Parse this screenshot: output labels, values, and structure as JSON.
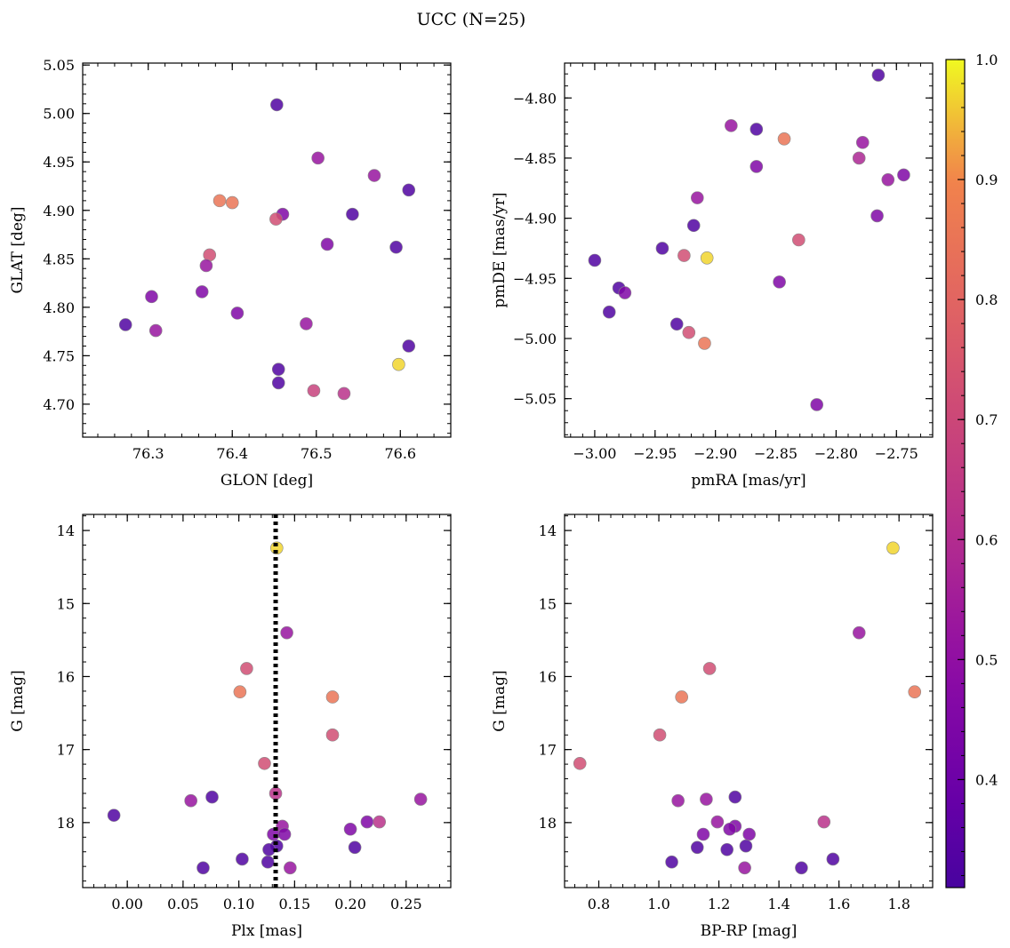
{
  "figure": {
    "title": "UCC (N=25)"
  },
  "colorbar": {
    "min": 0.31,
    "max": 1.0,
    "ticks": [
      0.4,
      0.5,
      0.6,
      0.7,
      0.8,
      0.9,
      1.0
    ],
    "tick_labels": [
      "0.4",
      "0.5",
      "0.6",
      "0.7",
      "0.8",
      "0.9",
      "1.0"
    ],
    "colormap": "plasma"
  },
  "marker_color_values": [
    0.33,
    0.45,
    0.52,
    0.58,
    0.62,
    0.68,
    0.72,
    0.78,
    0.85,
    0.97
  ],
  "chart_data": [
    {
      "type": "scatter",
      "title": "",
      "xlabel": "GLON [deg]",
      "ylabel": "GLAT [deg]",
      "xlim": [
        76.222,
        76.66
      ],
      "ylim": [
        4.666,
        5.052
      ],
      "invert_y": false,
      "xticks": [
        76.3,
        76.4,
        76.5,
        76.6
      ],
      "xtick_labels": [
        "76.3",
        "76.4",
        "76.5",
        "76.6"
      ],
      "yticks": [
        4.7,
        4.75,
        4.8,
        4.85,
        4.9,
        4.95,
        5.0,
        5.05
      ],
      "ytick_labels": [
        "4.70",
        "4.75",
        "4.80",
        "4.85",
        "4.90",
        "4.95",
        "5.00",
        "5.05"
      ],
      "points": [
        {
          "x": 76.453,
          "y": 5.009,
          "c": 0.33
        },
        {
          "x": 76.502,
          "y": 4.954,
          "c": 0.52
        },
        {
          "x": 76.569,
          "y": 4.936,
          "c": 0.52
        },
        {
          "x": 76.61,
          "y": 4.921,
          "c": 0.33
        },
        {
          "x": 76.385,
          "y": 4.91,
          "c": 0.85
        },
        {
          "x": 76.4,
          "y": 4.908,
          "c": 0.85
        },
        {
          "x": 76.46,
          "y": 4.896,
          "c": 0.45
        },
        {
          "x": 76.543,
          "y": 4.896,
          "c": 0.33
        },
        {
          "x": 76.452,
          "y": 4.891,
          "c": 0.72
        },
        {
          "x": 76.513,
          "y": 4.865,
          "c": 0.45
        },
        {
          "x": 76.595,
          "y": 4.862,
          "c": 0.33
        },
        {
          "x": 76.373,
          "y": 4.854,
          "c": 0.72
        },
        {
          "x": 76.369,
          "y": 4.843,
          "c": 0.52
        },
        {
          "x": 76.364,
          "y": 4.816,
          "c": 0.45
        },
        {
          "x": 76.304,
          "y": 4.811,
          "c": 0.45
        },
        {
          "x": 76.406,
          "y": 4.794,
          "c": 0.45
        },
        {
          "x": 76.488,
          "y": 4.783,
          "c": 0.52
        },
        {
          "x": 76.273,
          "y": 4.782,
          "c": 0.33
        },
        {
          "x": 76.309,
          "y": 4.776,
          "c": 0.52
        },
        {
          "x": 76.61,
          "y": 4.76,
          "c": 0.33
        },
        {
          "x": 76.598,
          "y": 4.741,
          "c": 0.97
        },
        {
          "x": 76.455,
          "y": 4.736,
          "c": 0.33
        },
        {
          "x": 76.455,
          "y": 4.722,
          "c": 0.33
        },
        {
          "x": 76.497,
          "y": 4.714,
          "c": 0.68
        },
        {
          "x": 76.533,
          "y": 4.711,
          "c": 0.62
        }
      ]
    },
    {
      "type": "scatter",
      "title": "",
      "xlabel": "pmRA [mas/yr]",
      "ylabel": "pmDE [mas/yr]",
      "xlim": [
        -3.025,
        -2.72
      ],
      "ylim": [
        -5.082,
        -4.771
      ],
      "invert_y": false,
      "xticks": [
        -3.0,
        -2.95,
        -2.9,
        -2.85,
        -2.8,
        -2.75
      ],
      "xtick_labels": [
        "−3.00",
        "−2.95",
        "−2.90",
        "−2.85",
        "−2.80",
        "−2.75"
      ],
      "yticks": [
        -5.05,
        -5.0,
        -4.95,
        -4.9,
        -4.85,
        -4.8
      ],
      "ytick_labels": [
        "−5.05",
        "−5.00",
        "−4.95",
        "−4.90",
        "−4.85",
        "−4.80"
      ],
      "points": [
        {
          "x": -2.765,
          "y": -4.781,
          "c": 0.33
        },
        {
          "x": -2.887,
          "y": -4.823,
          "c": 0.52
        },
        {
          "x": -2.866,
          "y": -4.826,
          "c": 0.33
        },
        {
          "x": -2.843,
          "y": -4.834,
          "c": 0.85
        },
        {
          "x": -2.778,
          "y": -4.837,
          "c": 0.52
        },
        {
          "x": -2.781,
          "y": -4.85,
          "c": 0.58
        },
        {
          "x": -2.866,
          "y": -4.857,
          "c": 0.45
        },
        {
          "x": -2.744,
          "y": -4.864,
          "c": 0.45
        },
        {
          "x": -2.757,
          "y": -4.868,
          "c": 0.52
        },
        {
          "x": -2.915,
          "y": -4.883,
          "c": 0.52
        },
        {
          "x": -2.766,
          "y": -4.898,
          "c": 0.45
        },
        {
          "x": -2.918,
          "y": -4.906,
          "c": 0.33
        },
        {
          "x": -2.831,
          "y": -4.918,
          "c": 0.72
        },
        {
          "x": -2.944,
          "y": -4.925,
          "c": 0.33
        },
        {
          "x": -2.926,
          "y": -4.931,
          "c": 0.72
        },
        {
          "x": -2.907,
          "y": -4.933,
          "c": 0.97
        },
        {
          "x": -3.0,
          "y": -4.935,
          "c": 0.33
        },
        {
          "x": -2.847,
          "y": -4.953,
          "c": 0.45
        },
        {
          "x": -2.98,
          "y": -4.958,
          "c": 0.33
        },
        {
          "x": -2.975,
          "y": -4.962,
          "c": 0.45
        },
        {
          "x": -2.988,
          "y": -4.978,
          "c": 0.33
        },
        {
          "x": -2.932,
          "y": -4.988,
          "c": 0.33
        },
        {
          "x": -2.922,
          "y": -4.995,
          "c": 0.72
        },
        {
          "x": -2.909,
          "y": -5.004,
          "c": 0.85
        },
        {
          "x": -2.816,
          "y": -5.055,
          "c": 0.45
        }
      ]
    },
    {
      "type": "scatter",
      "title": "",
      "xlabel": "Plx [mas]",
      "ylabel": "G [mag]",
      "xlim": [
        -0.04,
        0.29
      ],
      "ylim": [
        18.89,
        13.78
      ],
      "invert_y": true,
      "vline": {
        "x": 0.133,
        "style": "dotted"
      },
      "xticks": [
        0.0,
        0.05,
        0.1,
        0.15,
        0.2,
        0.25
      ],
      "xtick_labels": [
        "0.00",
        "0.05",
        "0.10",
        "0.15",
        "0.20",
        "0.25"
      ],
      "yticks": [
        14,
        15,
        16,
        17,
        18
      ],
      "ytick_labels": [
        "14",
        "15",
        "16",
        "17",
        "18"
      ],
      "points": [
        {
          "x": 0.134,
          "y": 14.24,
          "c": 0.97
        },
        {
          "x": 0.143,
          "y": 15.4,
          "c": 0.52
        },
        {
          "x": 0.107,
          "y": 15.89,
          "c": 0.72
        },
        {
          "x": 0.101,
          "y": 16.21,
          "c": 0.85
        },
        {
          "x": 0.184,
          "y": 16.28,
          "c": 0.85
        },
        {
          "x": 0.184,
          "y": 16.8,
          "c": 0.72
        },
        {
          "x": 0.123,
          "y": 17.19,
          "c": 0.72
        },
        {
          "x": 0.133,
          "y": 17.6,
          "c": 0.62
        },
        {
          "x": 0.076,
          "y": 17.65,
          "c": 0.33
        },
        {
          "x": 0.263,
          "y": 17.68,
          "c": 0.52
        },
        {
          "x": 0.057,
          "y": 17.7,
          "c": 0.52
        },
        {
          "x": -0.012,
          "y": 17.9,
          "c": 0.33
        },
        {
          "x": 0.215,
          "y": 17.99,
          "c": 0.45
        },
        {
          "x": 0.226,
          "y": 17.99,
          "c": 0.62
        },
        {
          "x": 0.139,
          "y": 18.05,
          "c": 0.52
        },
        {
          "x": 0.2,
          "y": 18.09,
          "c": 0.45
        },
        {
          "x": 0.131,
          "y": 18.16,
          "c": 0.45
        },
        {
          "x": 0.141,
          "y": 18.16,
          "c": 0.45
        },
        {
          "x": 0.134,
          "y": 18.32,
          "c": 0.33
        },
        {
          "x": 0.204,
          "y": 18.34,
          "c": 0.33
        },
        {
          "x": 0.127,
          "y": 18.37,
          "c": 0.33
        },
        {
          "x": 0.103,
          "y": 18.5,
          "c": 0.33
        },
        {
          "x": 0.126,
          "y": 18.54,
          "c": 0.33
        },
        {
          "x": 0.068,
          "y": 18.62,
          "c": 0.33
        },
        {
          "x": 0.146,
          "y": 18.62,
          "c": 0.52
        }
      ]
    },
    {
      "type": "scatter",
      "title": "",
      "xlabel": "BP-RP [mag]",
      "ylabel": "G [mag]",
      "xlim": [
        0.686,
        1.912
      ],
      "ylim": [
        18.89,
        13.78
      ],
      "invert_y": true,
      "xticks": [
        0.8,
        1.0,
        1.2,
        1.4,
        1.6,
        1.8
      ],
      "xtick_labels": [
        "0.8",
        "1.0",
        "1.2",
        "1.4",
        "1.6",
        "1.8"
      ],
      "yticks": [
        14,
        15,
        16,
        17,
        18
      ],
      "ytick_labels": [
        "14",
        "15",
        "16",
        "17",
        "18"
      ],
      "points": [
        {
          "x": 1.78,
          "y": 14.24,
          "c": 0.97
        },
        {
          "x": 1.667,
          "y": 15.4,
          "c": 0.52
        },
        {
          "x": 1.169,
          "y": 15.89,
          "c": 0.72
        },
        {
          "x": 1.852,
          "y": 16.21,
          "c": 0.85
        },
        {
          "x": 1.076,
          "y": 16.28,
          "c": 0.85
        },
        {
          "x": 1.003,
          "y": 16.8,
          "c": 0.72
        },
        {
          "x": 0.737,
          "y": 17.19,
          "c": 0.72
        },
        {
          "x": 1.254,
          "y": 17.65,
          "c": 0.33
        },
        {
          "x": 1.158,
          "y": 17.68,
          "c": 0.52
        },
        {
          "x": 1.064,
          "y": 17.7,
          "c": 0.52
        },
        {
          "x": 1.55,
          "y": 17.99,
          "c": 0.62
        },
        {
          "x": 1.195,
          "y": 17.99,
          "c": 0.52
        },
        {
          "x": 1.254,
          "y": 18.05,
          "c": 0.45
        },
        {
          "x": 1.236,
          "y": 18.09,
          "c": 0.45
        },
        {
          "x": 1.301,
          "y": 18.16,
          "c": 0.45
        },
        {
          "x": 1.148,
          "y": 18.16,
          "c": 0.45
        },
        {
          "x": 1.29,
          "y": 18.32,
          "c": 0.33
        },
        {
          "x": 1.128,
          "y": 18.34,
          "c": 0.33
        },
        {
          "x": 1.227,
          "y": 18.37,
          "c": 0.33
        },
        {
          "x": 1.58,
          "y": 18.5,
          "c": 0.33
        },
        {
          "x": 1.043,
          "y": 18.54,
          "c": 0.33
        },
        {
          "x": 1.475,
          "y": 18.62,
          "c": 0.33
        },
        {
          "x": 1.286,
          "y": 18.62,
          "c": 0.52
        }
      ]
    }
  ]
}
